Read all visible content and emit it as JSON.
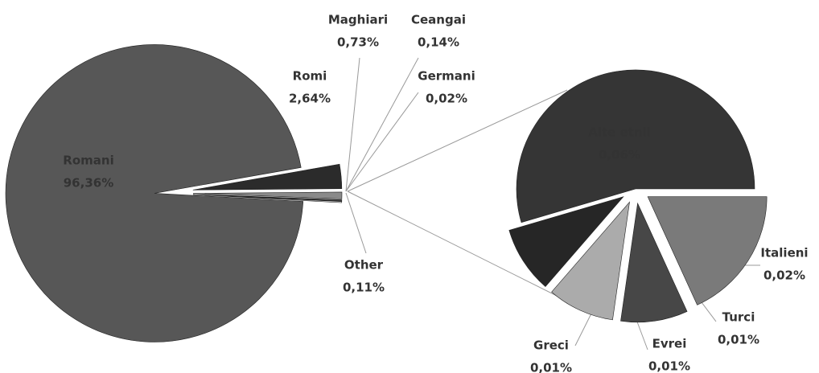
{
  "chart_data": [
    {
      "type": "pie",
      "categories": [
        "Romani",
        "Romi",
        "Maghiari",
        "Ceangai",
        "Germani",
        "Other"
      ],
      "values": [
        96.36,
        2.64,
        0.73,
        0.14,
        0.02,
        0.11
      ],
      "value_labels": [
        "96,36%",
        "2,64%",
        "0,73%",
        "0,14%",
        "0,02%",
        "0,11%"
      ],
      "colors": [
        "#575757",
        "#2b2b2b",
        "#8a8a8a",
        "#454545",
        "#bdbdbd",
        "#ffffff"
      ]
    },
    {
      "type": "pie",
      "categories": [
        "Italieni",
        "Turci",
        "Evrei",
        "Greci",
        "Alte etnii"
      ],
      "values": [
        0.02,
        0.01,
        0.01,
        0.01,
        0.06
      ],
      "value_labels": [
        "0,02%",
        "0,01%",
        "0,01%",
        "0,01%",
        "0,06%"
      ],
      "colors": [
        "#7a7a7a",
        "#474747",
        "#ababab",
        "#262626",
        "#353535"
      ]
    }
  ]
}
